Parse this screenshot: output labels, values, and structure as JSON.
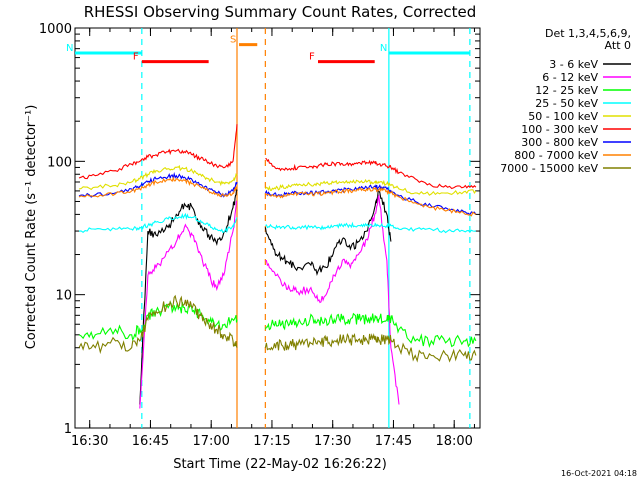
{
  "chart_data": {
    "type": "line",
    "title": "RHESSI Observing Summary Count Rates, Corrected",
    "xlabel": "Start Time (22-May-02 16:26:22)",
    "ylabel": "Corrected Count Rate (s⁻¹ detector⁻¹)",
    "x_unit": "minutes since 16:26:22",
    "xlim": [
      0,
      100
    ],
    "ylim": [
      1,
      1000
    ],
    "y_scale": "log",
    "x_tick_labels": [
      "16:30",
      "16:45",
      "17:00",
      "17:15",
      "17:30",
      "17:45",
      "18:00"
    ],
    "x_tick_positions": [
      3.63,
      18.63,
      33.63,
      48.63,
      63.63,
      78.63,
      93.63
    ],
    "y_tick_labels": [
      "1",
      "10",
      "100",
      "1000"
    ],
    "y_tick_values": [
      1,
      10,
      100,
      1000
    ],
    "legend_title": [
      "Det 1,3,4,5,6,9,",
      "Att 0"
    ],
    "legend_position": "right",
    "footer_text": "16-Oct-2021 04:18",
    "gaps": [
      [
        40,
        47
      ]
    ],
    "annotations": [
      {
        "text": "N",
        "color": "#00ffff",
        "x_range": [
          0,
          16.5
        ],
        "y": 650
      },
      {
        "text": "N",
        "color": "#00ffff",
        "x_range": [
          77.5,
          97.5
        ],
        "y": 650
      },
      {
        "text": "F",
        "color": "#ff0000",
        "x_range": [
          16.5,
          33
        ],
        "y": 560
      },
      {
        "text": "F",
        "color": "#ff0000",
        "x_range": [
          60,
          74
        ],
        "y": 560
      },
      {
        "text": "S",
        "color": "#ff8000",
        "x_range": [
          40.5,
          45
        ],
        "y": 750
      }
    ],
    "vlines": [
      {
        "x": 16.5,
        "color": "#00ffff",
        "style": "dashed"
      },
      {
        "x": 40,
        "color": "#ff8000",
        "style": "solid"
      },
      {
        "x": 47,
        "color": "#ff8000",
        "style": "dashed"
      },
      {
        "x": 77.5,
        "color": "#00ffff",
        "style": "solid"
      },
      {
        "x": 97.5,
        "color": "#00ffff",
        "style": "dashed"
      }
    ],
    "series": [
      {
        "name": "3 - 6 keV",
        "color": "#000000",
        "x": [
          1,
          5,
          10,
          14,
          16,
          18,
          20,
          23,
          25,
          27,
          29,
          31,
          33,
          35,
          37,
          39,
          40,
          47,
          49,
          51,
          53,
          55,
          58,
          60,
          62,
          64,
          66,
          68,
          70,
          72,
          74,
          75,
          77,
          78,
          80,
          84,
          88,
          92,
          96,
          99
        ],
        "y": [
          null,
          null,
          null,
          null,
          1.5,
          30,
          28,
          32,
          40,
          48,
          45,
          32,
          28,
          24,
          30,
          45,
          60,
          32,
          22,
          19,
          17,
          16,
          17,
          15,
          16,
          22,
          26,
          22,
          25,
          30,
          45,
          60,
          40,
          25,
          null,
          null,
          null,
          null,
          null,
          null
        ]
      },
      {
        "name": "6 - 12 keV",
        "color": "#ff00ff",
        "x": [
          1,
          5,
          10,
          14,
          16,
          18,
          20,
          23,
          25,
          27,
          29,
          31,
          33,
          35,
          37,
          39,
          40,
          47,
          49,
          51,
          53,
          55,
          58,
          60,
          62,
          64,
          66,
          68,
          70,
          72,
          74,
          75,
          77,
          78,
          80,
          84,
          88,
          92,
          96,
          99
        ],
        "y": [
          null,
          null,
          null,
          null,
          1.4,
          14,
          16,
          21,
          25,
          32,
          28,
          20,
          14,
          11,
          15,
          30,
          50,
          18,
          15,
          12,
          11,
          10.5,
          11,
          9,
          10,
          14,
          18,
          16,
          20,
          26,
          40,
          55,
          18,
          4,
          1.5,
          null,
          null,
          null,
          null,
          null
        ]
      },
      {
        "name": "12 - 25 keV",
        "color": "#00ff00",
        "x": [
          1,
          5,
          10,
          14,
          16,
          18,
          20,
          23,
          25,
          27,
          29,
          31,
          33,
          35,
          37,
          39,
          40,
          47,
          49,
          51,
          53,
          55,
          58,
          60,
          62,
          64,
          66,
          68,
          70,
          72,
          74,
          75,
          77,
          78,
          80,
          84,
          88,
          92,
          96,
          99
        ],
        "y": [
          5,
          5,
          5.5,
          5,
          5.5,
          7,
          7.5,
          8,
          8,
          8,
          7.5,
          7,
          6.5,
          6,
          6,
          6.5,
          6.5,
          5.5,
          6,
          6,
          6,
          6,
          6.5,
          6.5,
          6.5,
          6.5,
          6.5,
          6.5,
          6.5,
          6.5,
          6.5,
          6.5,
          6.5,
          6.5,
          5.5,
          4.5,
          4.5,
          4.5,
          4.5,
          4.5
        ]
      },
      {
        "name": "25 - 50 keV",
        "color": "#00ffff",
        "x": [
          1,
          5,
          10,
          14,
          16,
          18,
          20,
          23,
          25,
          27,
          29,
          31,
          33,
          35,
          37,
          39,
          40,
          47,
          49,
          51,
          53,
          55,
          58,
          60,
          62,
          64,
          66,
          68,
          70,
          72,
          74,
          75,
          77,
          78,
          80,
          84,
          88,
          92,
          96,
          99
        ],
        "y": [
          30,
          31,
          31,
          31,
          32,
          33,
          35,
          37,
          38,
          39,
          38,
          36,
          33,
          31,
          30,
          33,
          38,
          33,
          32,
          32,
          32,
          32,
          32,
          32,
          32,
          33,
          33,
          33,
          33,
          33,
          33,
          33,
          33,
          33,
          31,
          31,
          31,
          30,
          30,
          30
        ]
      },
      {
        "name": "50 - 100 keV",
        "color": "#e0e000",
        "x": [
          1,
          5,
          10,
          14,
          16,
          18,
          20,
          23,
          25,
          27,
          29,
          31,
          33,
          35,
          37,
          39,
          40,
          47,
          49,
          51,
          53,
          55,
          58,
          60,
          62,
          64,
          66,
          68,
          70,
          72,
          74,
          75,
          77,
          78,
          80,
          84,
          88,
          92,
          96,
          99
        ],
        "y": [
          62,
          64,
          66,
          70,
          74,
          80,
          85,
          88,
          90,
          88,
          84,
          80,
          74,
          70,
          68,
          72,
          80,
          62,
          62,
          64,
          65,
          66,
          67,
          68,
          69,
          70,
          70,
          71,
          71,
          70,
          70,
          69,
          68,
          66,
          62,
          58,
          57,
          58,
          59,
          60
        ]
      },
      {
        "name": "100 - 300 keV",
        "color": "#ff0000",
        "x": [
          1,
          5,
          10,
          14,
          16,
          18,
          20,
          23,
          25,
          27,
          29,
          31,
          33,
          35,
          37,
          39,
          40,
          47,
          49,
          51,
          53,
          55,
          58,
          60,
          62,
          64,
          66,
          68,
          70,
          72,
          74,
          75,
          77,
          78,
          80,
          84,
          88,
          92,
          96,
          99
        ],
        "y": [
          75,
          78,
          85,
          95,
          100,
          108,
          112,
          118,
          120,
          118,
          112,
          105,
          98,
          92,
          90,
          100,
          190,
          105,
          92,
          88,
          88,
          90,
          92,
          92,
          95,
          96,
          96,
          96,
          98,
          98,
          98,
          95,
          92,
          90,
          82,
          74,
          66,
          64,
          64,
          64
        ]
      },
      {
        "name": "300 - 800 keV",
        "color": "#0000ff",
        "x": [
          1,
          5,
          10,
          14,
          16,
          18,
          20,
          23,
          25,
          27,
          29,
          31,
          33,
          35,
          37,
          39,
          40,
          47,
          49,
          51,
          53,
          55,
          58,
          60,
          62,
          64,
          66,
          68,
          70,
          72,
          74,
          75,
          77,
          78,
          80,
          84,
          88,
          92,
          96,
          99
        ],
        "y": [
          55,
          56,
          58,
          62,
          65,
          70,
          74,
          77,
          78,
          76,
          72,
          67,
          62,
          58,
          56,
          60,
          70,
          58,
          56,
          56,
          57,
          58,
          58,
          58,
          59,
          60,
          61,
          62,
          63,
          64,
          65,
          64,
          62,
          60,
          55,
          50,
          46,
          44,
          42,
          40
        ]
      },
      {
        "name": "800 - 7000 keV",
        "color": "#ff8000",
        "x": [
          1,
          5,
          10,
          14,
          16,
          18,
          20,
          23,
          25,
          27,
          29,
          31,
          33,
          35,
          37,
          39,
          40,
          47,
          49,
          51,
          53,
          55,
          58,
          60,
          62,
          64,
          66,
          68,
          70,
          72,
          74,
          75,
          77,
          78,
          80,
          84,
          88,
          92,
          96,
          99
        ],
        "y": [
          54,
          55,
          57,
          60,
          62,
          66,
          70,
          73,
          74,
          72,
          68,
          64,
          60,
          57,
          55,
          58,
          65,
          56,
          55,
          55,
          56,
          57,
          57,
          57,
          58,
          59,
          60,
          60,
          61,
          62,
          62,
          61,
          60,
          58,
          54,
          49,
          45,
          43,
          41,
          40
        ]
      },
      {
        "name": "7000 - 15000 keV",
        "color": "#808000",
        "x": [
          1,
          5,
          10,
          14,
          16,
          18,
          20,
          23,
          25,
          27,
          29,
          31,
          33,
          35,
          37,
          39,
          40,
          47,
          49,
          51,
          53,
          55,
          58,
          60,
          62,
          64,
          66,
          68,
          70,
          72,
          74,
          75,
          77,
          78,
          80,
          84,
          88,
          92,
          96,
          99
        ],
        "y": [
          4,
          4,
          4.5,
          4,
          4.5,
          6.5,
          7.5,
          8.5,
          9,
          8.5,
          8,
          7,
          6,
          5.5,
          5,
          4.5,
          4,
          4,
          4,
          4.2,
          4.2,
          4.2,
          4.4,
          4.5,
          4.5,
          4.5,
          4.6,
          4.6,
          4.6,
          4.6,
          4.6,
          4.6,
          4.6,
          4.6,
          4,
          3.5,
          3.5,
          3.5,
          3.5,
          3.5
        ]
      }
    ]
  }
}
